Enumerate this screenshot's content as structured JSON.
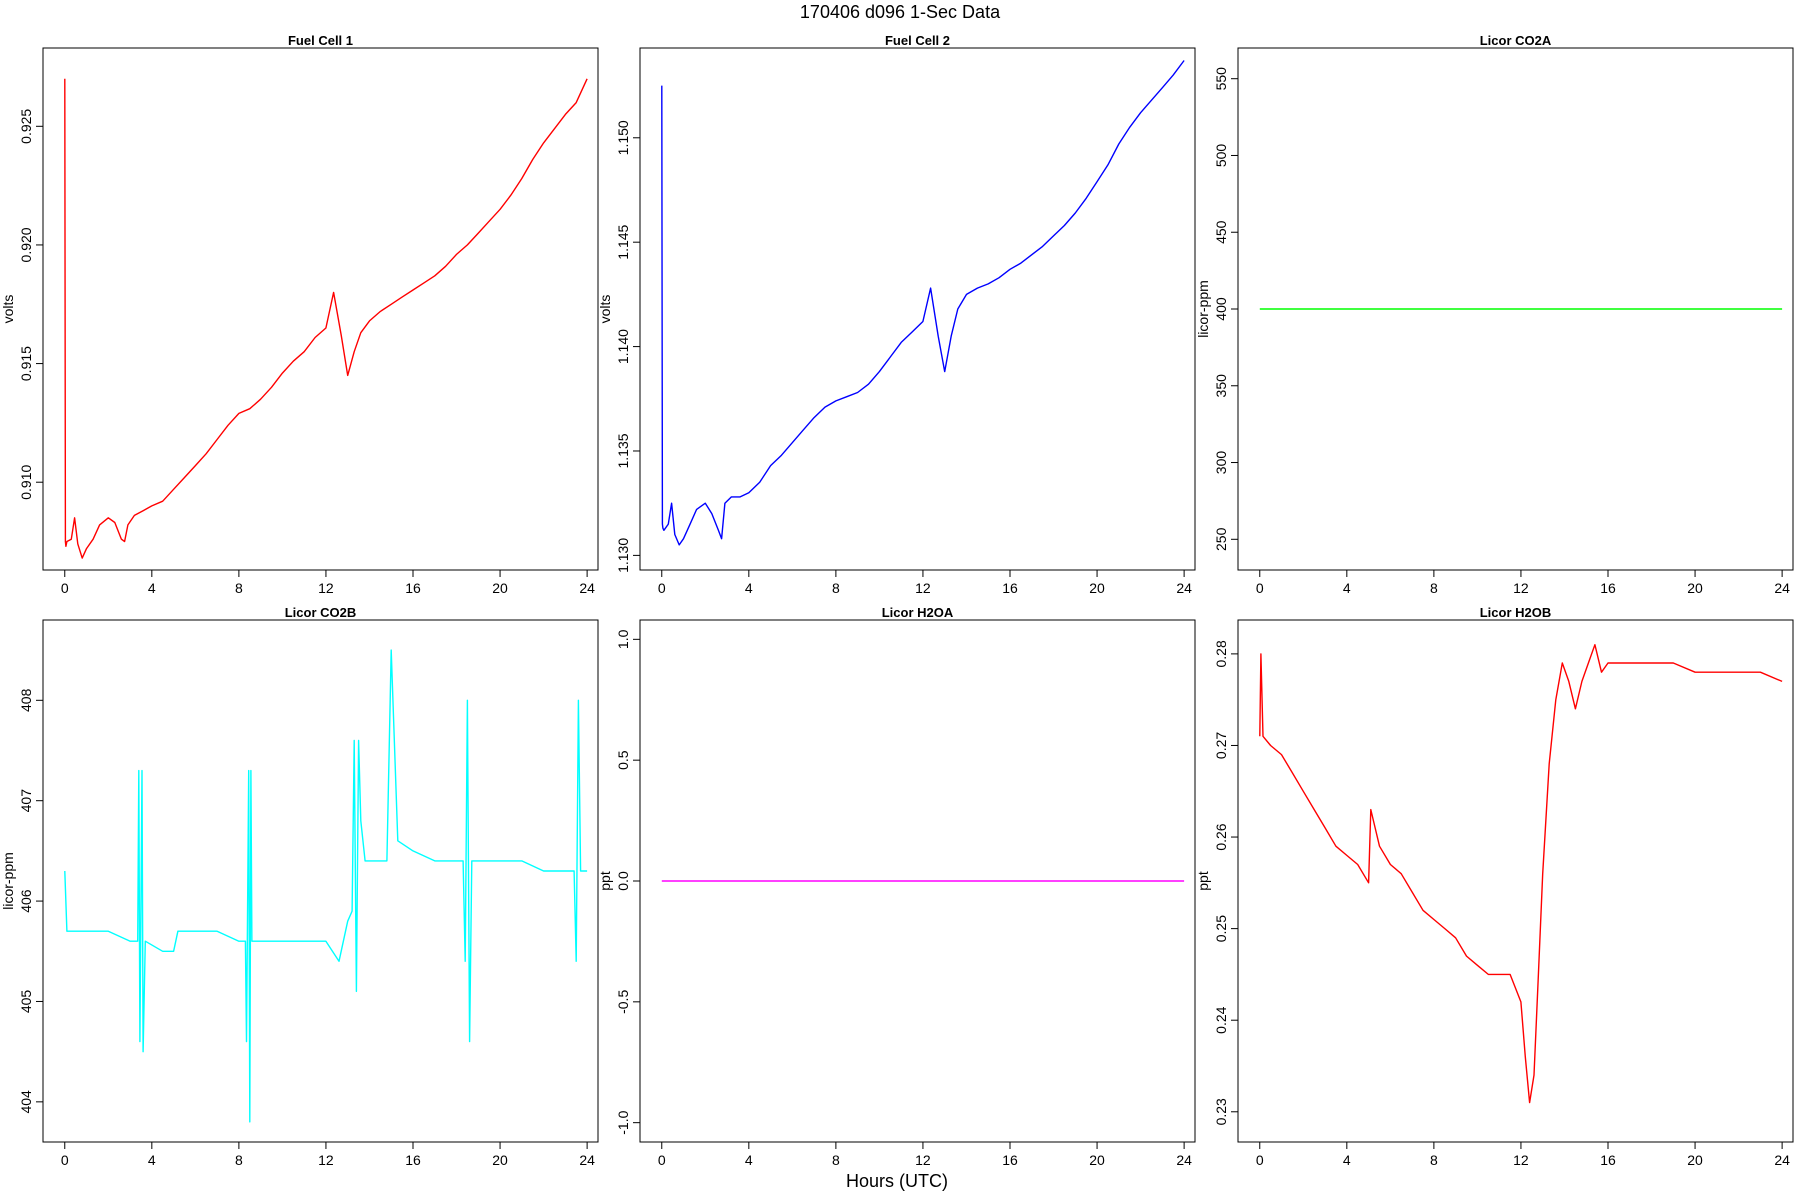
{
  "figure": {
    "title": "170406   d096   1-Sec Data",
    "xlabel": "Hours (UTC)"
  },
  "chart_data": [
    {
      "type": "line",
      "title": "Fuel Cell 1",
      "ylabel": "volts",
      "color": "#ff0000",
      "xlim": [
        -1,
        24.5
      ],
      "ylim": [
        0.9063,
        0.9283
      ],
      "xticks": [
        "0",
        "4",
        "8",
        "12",
        "16",
        "20",
        "24"
      ],
      "yticks": [
        "0.910",
        "0.915",
        "0.920",
        "0.925"
      ],
      "x": [
        0,
        0.03,
        0.05,
        0.1,
        0.3,
        0.45,
        0.6,
        0.8,
        1.0,
        1.3,
        1.6,
        2.0,
        2.3,
        2.6,
        2.75,
        2.9,
        3.2,
        3.6,
        4.0,
        4.5,
        5.0,
        5.5,
        6.0,
        6.5,
        7.0,
        7.5,
        8.0,
        8.5,
        9.0,
        9.5,
        10.0,
        10.5,
        11.0,
        11.5,
        12.0,
        12.35,
        12.7,
        13.0,
        13.3,
        13.6,
        14.0,
        14.5,
        15.0,
        15.5,
        16.0,
        16.5,
        17.0,
        17.5,
        18.0,
        18.5,
        19.0,
        19.5,
        20.0,
        20.5,
        21.0,
        21.5,
        22.0,
        22.5,
        23.0,
        23.5,
        24.0
      ],
      "y": [
        0.927,
        0.9075,
        0.9073,
        0.9075,
        0.9076,
        0.9085,
        0.9074,
        0.9068,
        0.9072,
        0.9076,
        0.9082,
        0.9085,
        0.9083,
        0.9076,
        0.9075,
        0.9082,
        0.9086,
        0.9088,
        0.909,
        0.9092,
        0.9097,
        0.9102,
        0.9107,
        0.9112,
        0.9118,
        0.9124,
        0.9129,
        0.9131,
        0.9135,
        0.914,
        0.9146,
        0.9151,
        0.9155,
        0.9161,
        0.9165,
        0.918,
        0.9162,
        0.9145,
        0.9155,
        0.9163,
        0.9168,
        0.9172,
        0.9175,
        0.9178,
        0.9181,
        0.9184,
        0.9187,
        0.9191,
        0.9196,
        0.92,
        0.9205,
        0.921,
        0.9215,
        0.9221,
        0.9228,
        0.9236,
        0.9243,
        0.9249,
        0.9255,
        0.926,
        0.927
      ]
    },
    {
      "type": "line",
      "title": "Fuel Cell 2",
      "ylabel": "volts",
      "color": "#0000ff",
      "xlim": [
        -1,
        24.5
      ],
      "ylim": [
        1.1293,
        1.1543
      ],
      "xticks": [
        "0",
        "4",
        "8",
        "12",
        "16",
        "20",
        "24"
      ],
      "yticks": [
        "1.130",
        "1.135",
        "1.140",
        "1.145",
        "1.150"
      ],
      "x": [
        0,
        0.03,
        0.05,
        0.1,
        0.3,
        0.45,
        0.6,
        0.8,
        1.0,
        1.3,
        1.6,
        2.0,
        2.3,
        2.6,
        2.75,
        2.9,
        3.2,
        3.6,
        4.0,
        4.5,
        5.0,
        5.5,
        6.0,
        6.5,
        7.0,
        7.5,
        8.0,
        8.5,
        9.0,
        9.5,
        10.0,
        10.5,
        11.0,
        11.5,
        12.0,
        12.35,
        12.7,
        13.0,
        13.3,
        13.6,
        14.0,
        14.5,
        15.0,
        15.5,
        16.0,
        16.5,
        17.0,
        17.5,
        18.0,
        18.5,
        19.0,
        19.5,
        20.0,
        20.5,
        21.0,
        21.5,
        22.0,
        22.5,
        23.0,
        23.5,
        24.0
      ],
      "y": [
        1.1525,
        1.1315,
        1.1313,
        1.1312,
        1.1315,
        1.1325,
        1.131,
        1.1305,
        1.1308,
        1.1315,
        1.1322,
        1.1325,
        1.132,
        1.1312,
        1.1308,
        1.1325,
        1.1328,
        1.1328,
        1.133,
        1.1335,
        1.1343,
        1.1348,
        1.1354,
        1.136,
        1.1366,
        1.1371,
        1.1374,
        1.1376,
        1.1378,
        1.1382,
        1.1388,
        1.1395,
        1.1402,
        1.1407,
        1.1412,
        1.1428,
        1.1405,
        1.1388,
        1.1405,
        1.1418,
        1.1425,
        1.1428,
        1.143,
        1.1433,
        1.1437,
        1.144,
        1.1444,
        1.1448,
        1.1453,
        1.1458,
        1.1464,
        1.1471,
        1.1479,
        1.1487,
        1.1497,
        1.1505,
        1.1512,
        1.1518,
        1.1524,
        1.153,
        1.1537
      ]
    },
    {
      "type": "line",
      "title": "Licor CO2A",
      "ylabel": "licor-ppm",
      "color": "#00ff00",
      "xlim": [
        -1,
        24.5
      ],
      "ylim": [
        230,
        570
      ],
      "xticks": [
        "0",
        "4",
        "8",
        "12",
        "16",
        "20",
        "24"
      ],
      "yticks": [
        "250",
        "300",
        "350",
        "400",
        "450",
        "500",
        "550"
      ],
      "x": [
        0,
        24
      ],
      "y": [
        400,
        400
      ]
    },
    {
      "type": "line",
      "title": "Licor CO2B",
      "ylabel": "licor-ppm",
      "color": "#00ffff",
      "xlim": [
        -1,
        24.5
      ],
      "ylim": [
        403.6,
        408.8
      ],
      "xticks": [
        "0",
        "4",
        "8",
        "12",
        "16",
        "20",
        "24"
      ],
      "yticks": [
        "404",
        "405",
        "406",
        "407",
        "408"
      ],
      "x": [
        0,
        0.1,
        1.0,
        2.0,
        3.0,
        3.35,
        3.4,
        3.45,
        3.55,
        3.6,
        3.7,
        4.5,
        5.0,
        5.2,
        6.0,
        7.0,
        8.0,
        8.3,
        8.35,
        8.45,
        8.5,
        8.55,
        8.6,
        8.7,
        9.5,
        10.5,
        11.5,
        12.0,
        12.6,
        13.0,
        13.2,
        13.3,
        13.4,
        13.5,
        13.6,
        13.8,
        14.2,
        14.8,
        15.0,
        15.3,
        16.0,
        17.0,
        18.0,
        18.3,
        18.4,
        18.5,
        18.6,
        18.7,
        19.0,
        20.0,
        21.0,
        22.0,
        23.0,
        23.4,
        23.5,
        23.6,
        23.7,
        23.8,
        24.0
      ],
      "y": [
        406.3,
        405.7,
        405.7,
        405.7,
        405.6,
        405.6,
        407.3,
        404.6,
        407.3,
        404.5,
        405.6,
        405.5,
        405.5,
        405.7,
        405.7,
        405.7,
        405.6,
        405.6,
        404.6,
        407.3,
        403.8,
        407.3,
        405.6,
        405.6,
        405.6,
        405.6,
        405.6,
        405.6,
        405.4,
        405.8,
        405.9,
        407.6,
        405.1,
        407.6,
        406.8,
        406.4,
        406.4,
        406.4,
        408.5,
        406.6,
        406.5,
        406.4,
        406.4,
        406.4,
        405.4,
        408.0,
        404.6,
        406.4,
        406.4,
        406.4,
        406.4,
        406.3,
        406.3,
        406.3,
        405.4,
        408.0,
        406.3,
        406.3,
        406.3
      ]
    },
    {
      "type": "line",
      "title": "Licor H2OA",
      "ylabel": "ppt",
      "color": "#ff00ff",
      "xlim": [
        -1,
        24.5
      ],
      "ylim": [
        -1.08,
        1.08
      ],
      "xticks": [
        "0",
        "4",
        "8",
        "12",
        "16",
        "20",
        "24"
      ],
      "yticks": [
        "-1.0",
        "-0.5",
        "0.0",
        "0.5",
        "1.0"
      ],
      "x": [
        0,
        24
      ],
      "y": [
        0,
        0
      ]
    },
    {
      "type": "line",
      "title": "Licor H2OB",
      "ylabel": "ppt",
      "color": "#ff0000",
      "xlim": [
        -1,
        24.5
      ],
      "ylim": [
        0.2267,
        0.2837
      ],
      "xticks": [
        "0",
        "4",
        "8",
        "12",
        "16",
        "20",
        "24"
      ],
      "yticks": [
        "0.23",
        "0.24",
        "0.25",
        "0.26",
        "0.27",
        "0.28"
      ],
      "x": [
        0,
        0.05,
        0.15,
        0.5,
        1.0,
        1.5,
        2.0,
        2.5,
        3.0,
        3.5,
        4.0,
        4.5,
        5.0,
        5.1,
        5.5,
        6.0,
        6.5,
        7.0,
        7.5,
        8.0,
        8.5,
        9.0,
        9.5,
        10.0,
        10.5,
        11.0,
        11.5,
        12.0,
        12.2,
        12.4,
        12.6,
        12.8,
        13.0,
        13.3,
        13.6,
        13.9,
        14.2,
        14.5,
        14.8,
        15.1,
        15.4,
        15.7,
        16.0,
        16.5,
        17.0,
        18.0,
        19.0,
        20.0,
        21.0,
        22.0,
        23.0,
        24.0
      ],
      "y": [
        0.271,
        0.28,
        0.271,
        0.27,
        0.269,
        0.267,
        0.265,
        0.263,
        0.261,
        0.259,
        0.258,
        0.257,
        0.255,
        0.263,
        0.259,
        0.257,
        0.256,
        0.254,
        0.252,
        0.251,
        0.25,
        0.249,
        0.247,
        0.246,
        0.245,
        0.245,
        0.245,
        0.242,
        0.236,
        0.231,
        0.234,
        0.245,
        0.256,
        0.268,
        0.275,
        0.279,
        0.277,
        0.274,
        0.277,
        0.279,
        0.281,
        0.278,
        0.279,
        0.279,
        0.279,
        0.279,
        0.279,
        0.278,
        0.278,
        0.278,
        0.278,
        0.277
      ]
    }
  ]
}
